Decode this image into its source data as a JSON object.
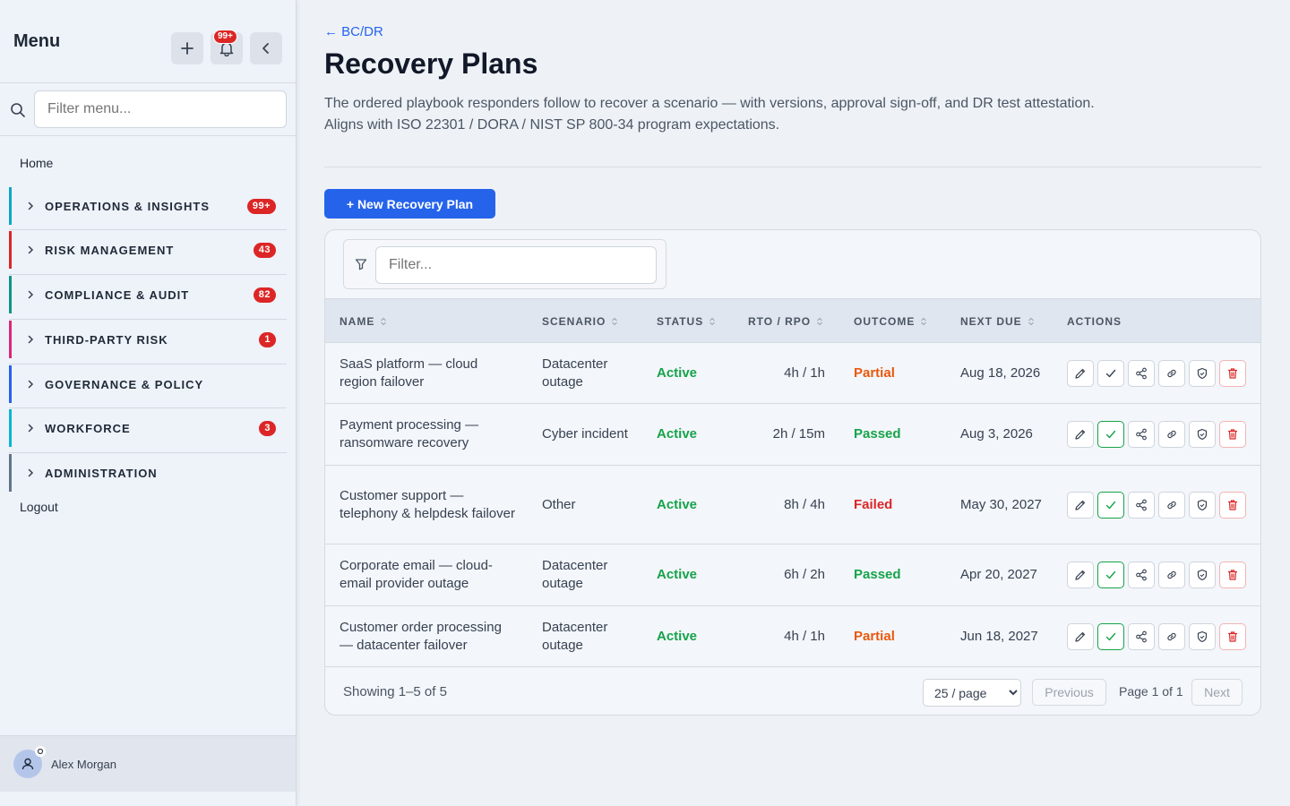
{
  "sidebar": {
    "title": "Menu",
    "notif_badge": "99+",
    "search_placeholder": "Filter menu...",
    "home": "Home",
    "sections": [
      {
        "label": "OPERATIONS & INSIGHTS",
        "count": "99+",
        "color": "#0ea5c6"
      },
      {
        "label": "RISK MANAGEMENT",
        "count": "43",
        "color": "#dc2626"
      },
      {
        "label": "COMPLIANCE & AUDIT",
        "count": "82",
        "color": "#0d9488"
      },
      {
        "label": "THIRD-PARTY RISK",
        "count": "1",
        "color": "#db2777"
      },
      {
        "label": "GOVERNANCE & POLICY",
        "count": "",
        "color": "#2563eb"
      },
      {
        "label": "WORKFORCE",
        "count": "3",
        "color": "#06b6d4"
      },
      {
        "label": "ADMINISTRATION",
        "count": "",
        "color": "#64748b"
      }
    ],
    "logout": "Logout",
    "user": "Alex Morgan"
  },
  "header": {
    "back": "← BC/DR",
    "title": "Recovery Plans",
    "description": "The ordered playbook responders follow to recover a scenario — with versions, approval sign-off, and DR test attestation. Aligns with ISO 22301 / DORA / NIST SP 800-34 program expectations.",
    "new_button": "+ New Recovery Plan"
  },
  "table": {
    "filter_placeholder": "Filter...",
    "columns": [
      "NAME",
      "SCENARIO",
      "STATUS",
      "RTO / RPO",
      "OUTCOME",
      "NEXT DUE",
      "ACTIONS"
    ],
    "rows": [
      {
        "name": "SaaS platform — cloud region failover",
        "scenario": "Datacenter outage",
        "status": "Active",
        "rto": "4h / 1h",
        "outcome": "Partial",
        "due": "Aug 18, 2026"
      },
      {
        "name": "Payment processing — ransomware recovery",
        "scenario": "Cyber incident",
        "status": "Active",
        "rto": "2h / 15m",
        "outcome": "Passed",
        "due": "Aug 3, 2026"
      },
      {
        "name": "Customer support — telephony & helpdesk failover",
        "scenario": "Other",
        "status": "Active",
        "rto": "8h / 4h",
        "outcome": "Failed",
        "due": "May 30, 2027"
      },
      {
        "name": "Corporate email — cloud-email provider outage",
        "scenario": "Datacenter outage",
        "status": "Active",
        "rto": "6h / 2h",
        "outcome": "Passed",
        "due": "Apr 20, 2027"
      },
      {
        "name": "Customer order processing — datacenter failover",
        "scenario": "Datacenter outage",
        "status": "Active",
        "rto": "4h / 1h",
        "outcome": "Partial",
        "due": "Jun 18, 2027"
      }
    ],
    "showing": "Showing 1–5 of 5",
    "per_page": "25 / page",
    "previous": "Previous",
    "page_info": "Page 1 of 1",
    "next": "Next"
  }
}
